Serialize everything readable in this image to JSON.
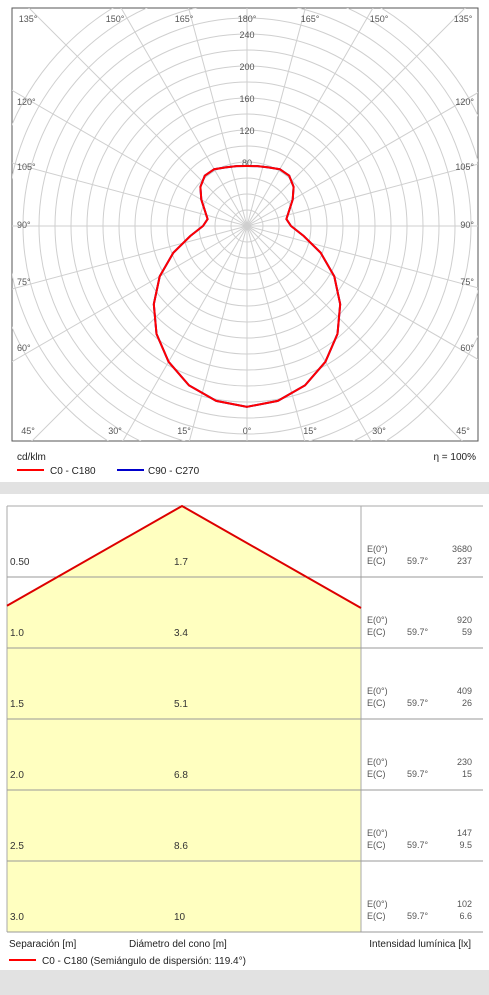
{
  "polar": {
    "unit_label": "cd/klm",
    "efficiency": "η = 100%",
    "legend": [
      {
        "name": "C0 - C180",
        "color": "#ff0000"
      },
      {
        "name": "C90 - C270",
        "color": "#0000cc"
      }
    ],
    "radial_ticks": [
      "80",
      "120",
      "160",
      "200",
      "240"
    ],
    "angle_labels_top": [
      "135°",
      "150°",
      "165°",
      "180°",
      "165°",
      "150°",
      "135°"
    ],
    "angle_labels_bottom": [
      "45°",
      "30°",
      "15°",
      "0°",
      "15°",
      "30°",
      "45°"
    ],
    "angle_labels_left": [
      "120°",
      "105°",
      "90°",
      "75°",
      "60°"
    ],
    "angle_labels_right": [
      "120°",
      "105°",
      "90°",
      "75°",
      "60°"
    ]
  },
  "chart_data": {
    "type": "polar",
    "unit": "cd/klm",
    "radial_max": 240,
    "series": [
      {
        "name": "C0 - C180",
        "angles_deg": [
          0,
          10,
          20,
          30,
          40,
          50,
          60,
          70,
          80,
          90,
          100,
          110,
          120,
          130,
          140,
          150,
          160,
          170,
          180
        ],
        "values": [
          226,
          222,
          212,
          196,
          176,
          152,
          126,
          98,
          72,
          55,
          50,
          56,
          66,
          76,
          82,
          82,
          78,
          76,
          75
        ]
      },
      {
        "name": "C90 - C270",
        "angles_deg": [
          0,
          10,
          20,
          30,
          40,
          50,
          60,
          70,
          80,
          90,
          100,
          110,
          120,
          130,
          140,
          150,
          160,
          170,
          180
        ],
        "values": [
          226,
          222,
          212,
          196,
          176,
          152,
          126,
          98,
          72,
          55,
          50,
          56,
          66,
          76,
          82,
          82,
          78,
          76,
          75
        ]
      }
    ]
  },
  "cone": {
    "rows": [
      {
        "separation": "0.50",
        "diameter": "1.7",
        "e0_value": "3680",
        "ec_value": "237"
      },
      {
        "separation": "1.0",
        "diameter": "3.4",
        "e0_value": "920",
        "ec_value": "59"
      },
      {
        "separation": "1.5",
        "diameter": "5.1",
        "e0_value": "409",
        "ec_value": "26"
      },
      {
        "separation": "2.0",
        "diameter": "6.8",
        "e0_value": "230",
        "ec_value": "15"
      },
      {
        "separation": "2.5",
        "diameter": "8.6",
        "e0_value": "147",
        "ec_value": "9.5"
      },
      {
        "separation": "3.0",
        "diameter": "10",
        "e0_value": "102",
        "ec_value": "6.6"
      }
    ],
    "e0_label": "E(0°)",
    "ec_label": "E(C)",
    "ec_angle": "59.7°",
    "footer_separation": "Separación [m]",
    "footer_diameter": "Diámetro del cono [m]",
    "footer_intensity": "Intensidad lumínica [lx]",
    "legend_label": "C0 - C180 (Semiángulo de dispersión: 119.4°)",
    "legend_color": "#ff0000",
    "fill_color": "#ffffc0",
    "line_color": "#dd0000"
  }
}
